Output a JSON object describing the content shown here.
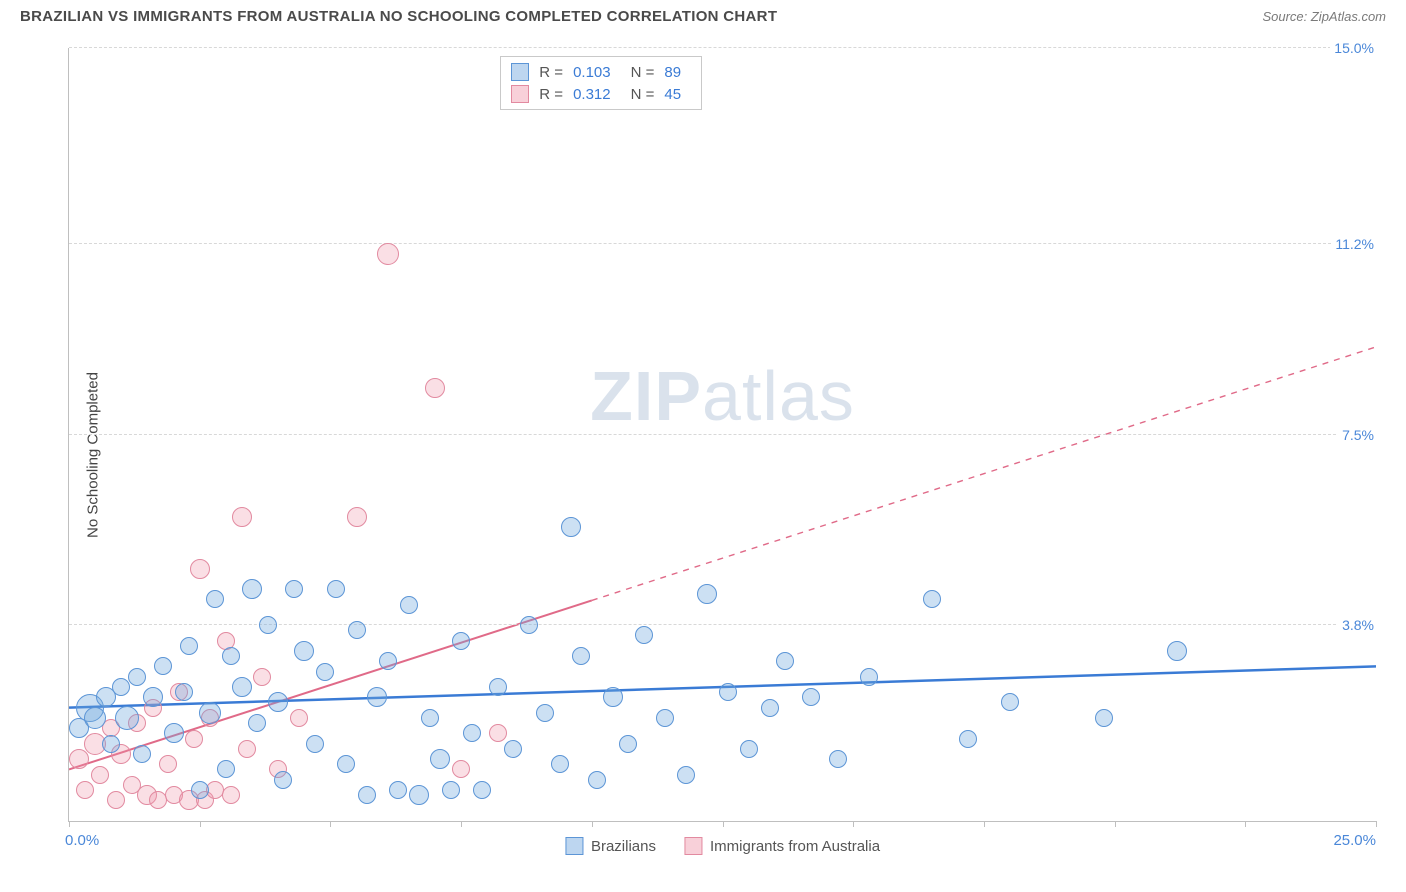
{
  "header": {
    "title": "BRAZILIAN VS IMMIGRANTS FROM AUSTRALIA NO SCHOOLING COMPLETED CORRELATION CHART",
    "source": "Source: ZipAtlas.com"
  },
  "ylabel": "No Schooling Completed",
  "watermark": "ZIPatlas",
  "chart": {
    "type": "scatter",
    "xlim": [
      0,
      25
    ],
    "ylim": [
      0,
      15
    ],
    "x_origin_label": "0.0%",
    "x_max_label": "25.0%",
    "y_ticks": [
      {
        "value": 3.8,
        "label": "3.8%"
      },
      {
        "value": 7.5,
        "label": "7.5%"
      },
      {
        "value": 11.2,
        "label": "11.2%"
      },
      {
        "value": 15.0,
        "label": "15.0%"
      }
    ],
    "x_tick_positions": [
      0,
      2.5,
      5,
      7.5,
      10,
      12.5,
      15,
      17.5,
      20,
      22.5,
      25
    ],
    "background_color": "#ffffff",
    "grid_color": "#d8d8d8",
    "axis_color": "#bfbfbf",
    "tick_label_color": "#4a87d8",
    "series": {
      "blue": {
        "label": "Brazilians",
        "fill": "rgba(109,165,222,0.35)",
        "stroke": "#5c95d6",
        "R": "0.103",
        "N": "89",
        "trend": {
          "y_at_x0": 2.2,
          "y_at_xmax": 3.0,
          "solid_until_x": 25,
          "stroke": "#3a7bd5",
          "width": 2.5
        }
      },
      "pink": {
        "label": "Immigrants from Australia",
        "fill": "rgba(240,150,170,0.30)",
        "stroke": "#e28aa0",
        "R": "0.312",
        "N": "45",
        "trend": {
          "y_at_x0": 1.0,
          "y_at_xmax": 9.2,
          "solid_until_x": 10,
          "stroke": "#e06a88",
          "width": 2
        }
      }
    },
    "marker_default_r": 9,
    "points_blue": [
      {
        "x": 0.2,
        "y": 1.8,
        "r": 10
      },
      {
        "x": 0.4,
        "y": 2.2,
        "r": 14
      },
      {
        "x": 0.5,
        "y": 2.0,
        "r": 11
      },
      {
        "x": 0.7,
        "y": 2.4,
        "r": 10
      },
      {
        "x": 0.8,
        "y": 1.5,
        "r": 9
      },
      {
        "x": 1.0,
        "y": 2.6,
        "r": 9
      },
      {
        "x": 1.1,
        "y": 2.0,
        "r": 12
      },
      {
        "x": 1.3,
        "y": 2.8,
        "r": 9
      },
      {
        "x": 1.4,
        "y": 1.3,
        "r": 9
      },
      {
        "x": 1.6,
        "y": 2.4,
        "r": 10
      },
      {
        "x": 1.8,
        "y": 3.0,
        "r": 9
      },
      {
        "x": 2.0,
        "y": 1.7,
        "r": 10
      },
      {
        "x": 2.2,
        "y": 2.5,
        "r": 9
      },
      {
        "x": 2.3,
        "y": 3.4,
        "r": 9
      },
      {
        "x": 2.5,
        "y": 0.6,
        "r": 9
      },
      {
        "x": 2.7,
        "y": 2.1,
        "r": 11
      },
      {
        "x": 2.8,
        "y": 4.3,
        "r": 9
      },
      {
        "x": 3.0,
        "y": 1.0,
        "r": 9
      },
      {
        "x": 3.1,
        "y": 3.2,
        "r": 9
      },
      {
        "x": 3.3,
        "y": 2.6,
        "r": 10
      },
      {
        "x": 3.5,
        "y": 4.5,
        "r": 10
      },
      {
        "x": 3.6,
        "y": 1.9,
        "r": 9
      },
      {
        "x": 3.8,
        "y": 3.8,
        "r": 9
      },
      {
        "x": 4.0,
        "y": 2.3,
        "r": 10
      },
      {
        "x": 4.1,
        "y": 0.8,
        "r": 9
      },
      {
        "x": 4.3,
        "y": 4.5,
        "r": 9
      },
      {
        "x": 4.5,
        "y": 3.3,
        "r": 10
      },
      {
        "x": 4.7,
        "y": 1.5,
        "r": 9
      },
      {
        "x": 4.9,
        "y": 2.9,
        "r": 9
      },
      {
        "x": 5.1,
        "y": 4.5,
        "r": 9
      },
      {
        "x": 5.3,
        "y": 1.1,
        "r": 9
      },
      {
        "x": 5.5,
        "y": 3.7,
        "r": 9
      },
      {
        "x": 5.7,
        "y": 0.5,
        "r": 9
      },
      {
        "x": 5.9,
        "y": 2.4,
        "r": 10
      },
      {
        "x": 6.1,
        "y": 3.1,
        "r": 9
      },
      {
        "x": 6.3,
        "y": 0.6,
        "r": 9
      },
      {
        "x": 6.5,
        "y": 4.2,
        "r": 9
      },
      {
        "x": 6.7,
        "y": 0.5,
        "r": 10
      },
      {
        "x": 6.9,
        "y": 2.0,
        "r": 9
      },
      {
        "x": 7.1,
        "y": 1.2,
        "r": 10
      },
      {
        "x": 7.3,
        "y": 0.6,
        "r": 9
      },
      {
        "x": 7.5,
        "y": 3.5,
        "r": 9
      },
      {
        "x": 7.7,
        "y": 1.7,
        "r": 9
      },
      {
        "x": 7.9,
        "y": 0.6,
        "r": 9
      },
      {
        "x": 8.2,
        "y": 2.6,
        "r": 9
      },
      {
        "x": 8.5,
        "y": 1.4,
        "r": 9
      },
      {
        "x": 8.8,
        "y": 3.8,
        "r": 9
      },
      {
        "x": 9.1,
        "y": 2.1,
        "r": 9
      },
      {
        "x": 9.4,
        "y": 1.1,
        "r": 9
      },
      {
        "x": 9.6,
        "y": 5.7,
        "r": 10
      },
      {
        "x": 9.8,
        "y": 3.2,
        "r": 9
      },
      {
        "x": 10.1,
        "y": 0.8,
        "r": 9
      },
      {
        "x": 10.4,
        "y": 2.4,
        "r": 10
      },
      {
        "x": 10.7,
        "y": 1.5,
        "r": 9
      },
      {
        "x": 11.0,
        "y": 3.6,
        "r": 9
      },
      {
        "x": 11.4,
        "y": 2.0,
        "r": 9
      },
      {
        "x": 11.8,
        "y": 0.9,
        "r": 9
      },
      {
        "x": 12.2,
        "y": 4.4,
        "r": 10
      },
      {
        "x": 12.6,
        "y": 2.5,
        "r": 9
      },
      {
        "x": 13.0,
        "y": 1.4,
        "r": 9
      },
      {
        "x": 13.4,
        "y": 2.2,
        "r": 9
      },
      {
        "x": 13.7,
        "y": 3.1,
        "r": 9
      },
      {
        "x": 14.2,
        "y": 2.4,
        "r": 9
      },
      {
        "x": 14.7,
        "y": 1.2,
        "r": 9
      },
      {
        "x": 15.3,
        "y": 2.8,
        "r": 9
      },
      {
        "x": 16.5,
        "y": 4.3,
        "r": 9
      },
      {
        "x": 17.2,
        "y": 1.6,
        "r": 9
      },
      {
        "x": 18.0,
        "y": 2.3,
        "r": 9
      },
      {
        "x": 19.8,
        "y": 2.0,
        "r": 9
      },
      {
        "x": 21.2,
        "y": 3.3,
        "r": 10
      }
    ],
    "points_pink": [
      {
        "x": 0.2,
        "y": 1.2,
        "r": 10
      },
      {
        "x": 0.3,
        "y": 0.6,
        "r": 9
      },
      {
        "x": 0.5,
        "y": 1.5,
        "r": 11
      },
      {
        "x": 0.6,
        "y": 0.9,
        "r": 9
      },
      {
        "x": 0.8,
        "y": 1.8,
        "r": 9
      },
      {
        "x": 0.9,
        "y": 0.4,
        "r": 9
      },
      {
        "x": 1.0,
        "y": 1.3,
        "r": 10
      },
      {
        "x": 1.2,
        "y": 0.7,
        "r": 9
      },
      {
        "x": 1.3,
        "y": 1.9,
        "r": 9
      },
      {
        "x": 1.5,
        "y": 0.5,
        "r": 10
      },
      {
        "x": 1.6,
        "y": 2.2,
        "r": 9
      },
      {
        "x": 1.7,
        "y": 0.4,
        "r": 9
      },
      {
        "x": 1.9,
        "y": 1.1,
        "r": 9
      },
      {
        "x": 2.0,
        "y": 0.5,
        "r": 9
      },
      {
        "x": 2.1,
        "y": 2.5,
        "r": 9
      },
      {
        "x": 2.3,
        "y": 0.4,
        "r": 10
      },
      {
        "x": 2.4,
        "y": 1.6,
        "r": 9
      },
      {
        "x": 2.6,
        "y": 0.4,
        "r": 9
      },
      {
        "x": 2.7,
        "y": 2.0,
        "r": 9
      },
      {
        "x": 2.8,
        "y": 0.6,
        "r": 9
      },
      {
        "x": 3.0,
        "y": 3.5,
        "r": 9
      },
      {
        "x": 3.1,
        "y": 0.5,
        "r": 9
      },
      {
        "x": 3.4,
        "y": 1.4,
        "r": 9
      },
      {
        "x": 3.7,
        "y": 2.8,
        "r": 9
      },
      {
        "x": 4.0,
        "y": 1.0,
        "r": 9
      },
      {
        "x": 4.4,
        "y": 2.0,
        "r": 9
      },
      {
        "x": 2.5,
        "y": 4.9,
        "r": 10
      },
      {
        "x": 3.3,
        "y": 5.9,
        "r": 10
      },
      {
        "x": 5.5,
        "y": 5.9,
        "r": 10
      },
      {
        "x": 6.1,
        "y": 11.0,
        "r": 11
      },
      {
        "x": 7.0,
        "y": 8.4,
        "r": 10
      },
      {
        "x": 7.5,
        "y": 1.0,
        "r": 9
      },
      {
        "x": 8.2,
        "y": 1.7,
        "r": 9
      }
    ]
  },
  "stats_box": {
    "rows": [
      {
        "swatch": "blue",
        "R": "0.103",
        "N": "89"
      },
      {
        "swatch": "pink",
        "R": "0.312",
        "N": "45"
      }
    ],
    "R_label": "R =",
    "N_label": "N ="
  },
  "legend": {
    "items": [
      {
        "swatch": "blue",
        "label": "Brazilians"
      },
      {
        "swatch": "pink",
        "label": "Immigrants from Australia"
      }
    ]
  }
}
